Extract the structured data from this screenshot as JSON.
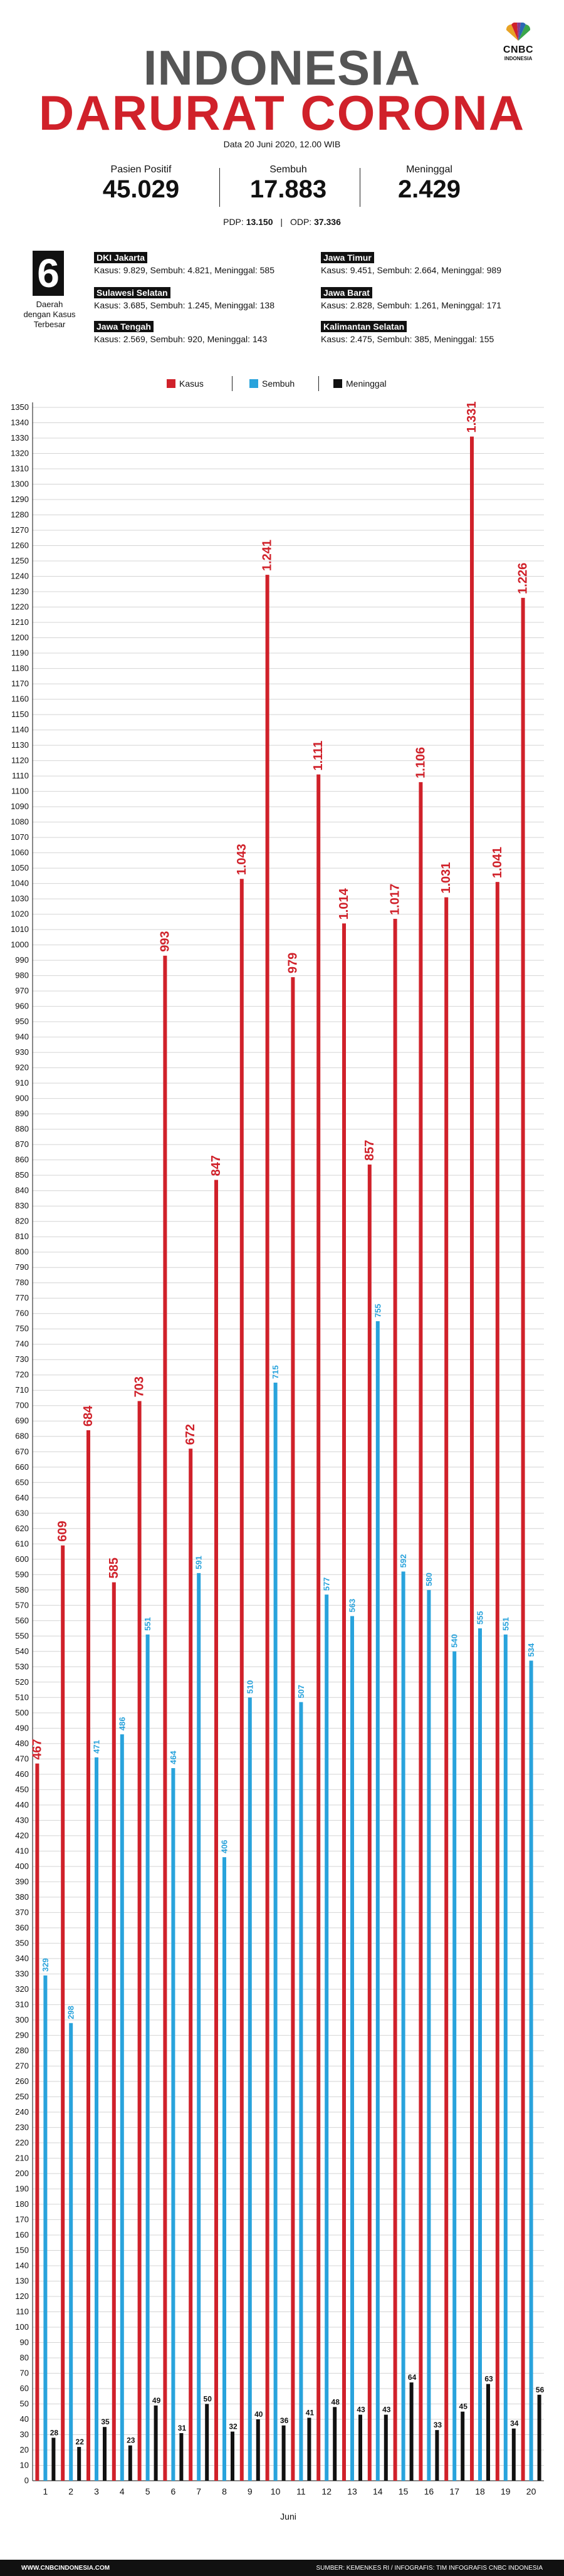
{
  "header": {
    "logo_text": "CNBC",
    "logo_sub": "INDONESIA",
    "title_line1": "INDONESIA",
    "title_line2": "DARURAT CORONA",
    "date": "Data 20 Juni 2020, 12.00 WIB"
  },
  "stats": [
    {
      "label": "Pasien Positif",
      "value": "45.029"
    },
    {
      "label": "Sembuh",
      "value": "17.883"
    },
    {
      "label": "Meninggal",
      "value": "2.429"
    }
  ],
  "pdp": {
    "pdp_label": "PDP:",
    "pdp_value": "13.150",
    "sep": "|",
    "odp_label": "ODP:",
    "odp_value": "37.336"
  },
  "regions_box": {
    "count": "6",
    "caption": "Daerah dengan Kasus Terbesar"
  },
  "regions": [
    {
      "name": "DKI Jakarta",
      "detail": "Kasus: 9.829, Sembuh: 4.821, Meninggal: 585"
    },
    {
      "name": "Jawa Timur",
      "detail": "Kasus: 9.451, Sembuh: 2.664, Meninggal: 989"
    },
    {
      "name": "Sulawesi Selatan",
      "detail": "Kasus: 3.685, Sembuh: 1.245, Meninggal: 138"
    },
    {
      "name": "Jawa Barat",
      "detail": "Kasus: 2.828, Sembuh: 1.261, Meninggal: 171"
    },
    {
      "name": "Jawa Tengah",
      "detail": "Kasus: 2.569, Sembuh: 920, Meninggal: 143"
    },
    {
      "name": "Kalimantan Selatan",
      "detail": "Kasus: 2.475, Sembuh: 385, Meninggal: 155"
    }
  ],
  "colors": {
    "kasus": "#d0212a",
    "sembuh": "#29a3dc",
    "meninggal": "#111111"
  },
  "chart_data": {
    "type": "bar",
    "xlabel": "Juni",
    "ylabel": "",
    "ylim": [
      0,
      1350
    ],
    "ytick_step": 10,
    "grid": true,
    "legend_position": "top-center",
    "categories": [
      "1",
      "2",
      "3",
      "4",
      "5",
      "6",
      "7",
      "8",
      "9",
      "10",
      "11",
      "12",
      "13",
      "14",
      "15",
      "16",
      "17",
      "18",
      "19",
      "20"
    ],
    "series": [
      {
        "name": "Kasus",
        "values": [
          467,
          609,
          684,
          585,
          703,
          993,
          672,
          847,
          1043,
          1241,
          979,
          1111,
          1014,
          857,
          1017,
          1106,
          1031,
          1331,
          1041,
          1226
        ],
        "labels": [
          "467",
          "609",
          "684",
          "585",
          "703",
          "993",
          "672",
          "847",
          "1.043",
          "1.241",
          "979",
          "1.111",
          "1.014",
          "857",
          "1.017",
          "1.106",
          "1.031",
          "1.331",
          "1.041",
          "1.226"
        ]
      },
      {
        "name": "Sembuh",
        "values": [
          329,
          298,
          471,
          486,
          551,
          464,
          591,
          406,
          510,
          715,
          507,
          577,
          563,
          755,
          592,
          580,
          540,
          555,
          551,
          534
        ],
        "labels": [
          "329",
          "298",
          "471",
          "486",
          "551",
          "464",
          "591",
          "406",
          "510",
          "715",
          "507",
          "577",
          "563",
          "755",
          "592",
          "580",
          "540",
          "555",
          "551",
          "534"
        ]
      },
      {
        "name": "Meninggal",
        "values": [
          28,
          22,
          35,
          23,
          49,
          31,
          50,
          32,
          40,
          36,
          41,
          48,
          43,
          43,
          64,
          33,
          45,
          63,
          34,
          56
        ],
        "labels": [
          "28",
          "22",
          "35",
          "23",
          "49",
          "31",
          "50",
          "32",
          "40",
          "36",
          "41",
          "48",
          "43",
          "43",
          "64",
          "33",
          "45",
          "63",
          "34",
          "56"
        ]
      }
    ]
  },
  "footer": {
    "left": "WWW.CNBCINDONESIA.COM",
    "right": "SUMBER: KEMENKES RI / INFOGRAFIS: TIM INFOGRAFIS CNBC INDONESIA"
  }
}
